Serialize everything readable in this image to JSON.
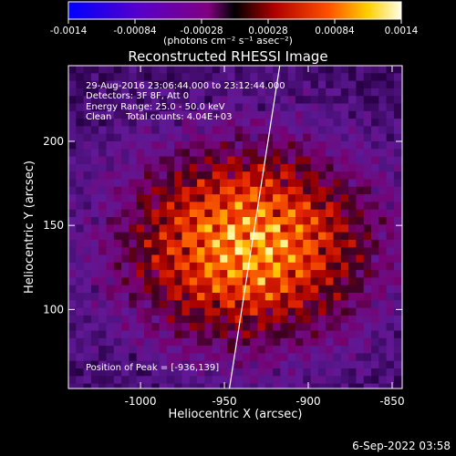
{
  "timestamp": "6-Sep-2022 03:58",
  "colorbar": {
    "ticks": [
      "-0.0014",
      "-0.00084",
      "-0.00028",
      "0.00028",
      "0.00084",
      "0.0014"
    ],
    "units": "(photons cm⁻² s⁻¹ asec⁻²)",
    "range": [
      -0.0014,
      0.0014
    ]
  },
  "info_lines": [
    "29-Aug-2016 23:06:44.000 to 23:12:44.000",
    "Detectors: 3F 8F, Att 0",
    "Energy Range: 25.0 - 50.0 keV",
    "Clean     Total counts: 4.04E+03"
  ],
  "peak_text": "Position of Peak = [-936,139]",
  "chart_data": {
    "type": "heatmap",
    "title": "Reconstructed RHESSI Image",
    "xlabel": "Heliocentric X (arcsec)",
    "ylabel": "Heliocentric Y (arcsec)",
    "xlim": [
      -1043,
      -844
    ],
    "ylim": [
      53,
      245
    ],
    "x_ticks": [
      -1000,
      -950,
      -900,
      -850
    ],
    "y_ticks": [
      100,
      150,
      200
    ],
    "x_tick_labels": [
      "-1000",
      "-950",
      "-900",
      "-850"
    ],
    "y_tick_labels": [
      "100",
      "150",
      "200"
    ],
    "peak": [
      -936,
      139
    ],
    "limb_line": [
      [
        -947,
        53
      ],
      [
        -917,
        245
      ]
    ],
    "grid": false
  }
}
